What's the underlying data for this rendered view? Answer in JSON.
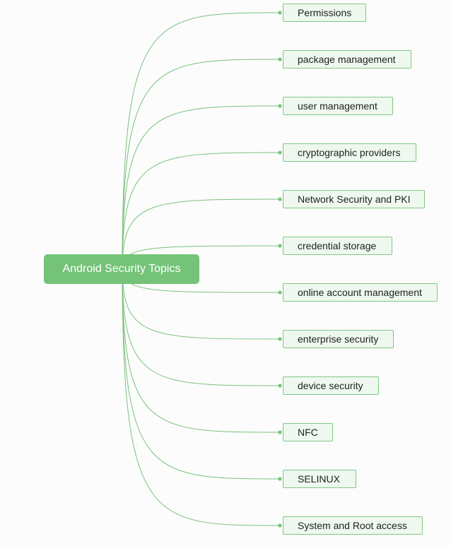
{
  "diagram": {
    "root": {
      "label": "Android Security Topics"
    },
    "children": [
      {
        "label": "Permissions"
      },
      {
        "label": "package management"
      },
      {
        "label": "user management"
      },
      {
        "label": "cryptographic providers"
      },
      {
        "label": "Network Security and PKI"
      },
      {
        "label": "credential storage"
      },
      {
        "label": "online account management"
      },
      {
        "label": "enterprise security"
      },
      {
        "label": "device security"
      },
      {
        "label": "NFC"
      },
      {
        "label": "SELINUX"
      },
      {
        "label": "System and Root access"
      }
    ]
  },
  "colors": {
    "root_fill": "#74c378",
    "root_text": "#ffffff",
    "child_fill": "#eef8ee",
    "child_border": "#7fc883",
    "link": "#78c27c",
    "background": "#fcfcfc"
  }
}
